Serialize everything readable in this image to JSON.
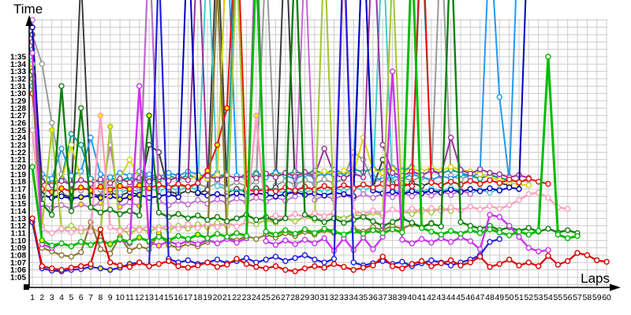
{
  "chart_data": {
    "type": "line",
    "title": "Time",
    "xlabel": "Laps",
    "x_ticks": {
      "from": 1,
      "to": 60,
      "step": 1
    },
    "y_ticks": [
      "1:05",
      "1:06",
      "1:07",
      "1:08",
      "1:09",
      "1:10",
      "1:11",
      "1:12",
      "1:13",
      "1:14",
      "1:15",
      "1:16",
      "1:17",
      "1:18",
      "1:19",
      "1:20",
      "1:21",
      "1:22",
      "1:23",
      "1:24",
      "1:25",
      "1:26",
      "1:27",
      "1:28",
      "1:29",
      "1:30",
      "1:31",
      "1:32",
      "1:33",
      "1:34",
      "1:35"
    ],
    "y_tick_seconds_min": 65,
    "y_tick_seconds_max": 95,
    "y_tick_format": "m:ss",
    "grid": true,
    "grid_color": "#cccccc",
    "axis_color": "#000000",
    "background": "#ffffff",
    "legend_position": "none",
    "marker": "open-circle",
    "marker_fill": "#ffffff",
    "marker_fill_alt": "#ffee00",
    "note": "lap times in seconds; values far above 95s are pit laps clipped by the top of the image",
    "series": [
      {
        "name": "grey",
        "color": "#9a9a9a",
        "width": 2,
        "yellow_marker_laps": [],
        "values": [
          98,
          94.0,
          86.0,
          79.0,
          77.2,
          76.8,
          77.3,
          76.9,
          77.4,
          77.0,
          77.5,
          77.1,
          111,
          77.5,
          77.0,
          77.6,
          77.1,
          77.7,
          77.2,
          77.8,
          77.3,
          77.9,
          77.4,
          78.0,
          109,
          77.5,
          78.1,
          77.6,
          78.2,
          77.7,
          78.3,
          77.8,
          78.4,
          82.0,
          81.0,
          77.9,
          78.5,
          78.0,
          78.6,
          78.1,
          78.7,
          78.2,
          112,
          78.8,
          78.3,
          78.9,
          78.4,
          79.0,
          78.5,
          78.3,
          78.0,
          78.2
        ]
      },
      {
        "name": "black",
        "color": "#3c3c3c",
        "width": 2,
        "yellow_marker_laps": [],
        "values": [
          98,
          76.2,
          75.8,
          76.3,
          75.9,
          106,
          76.4,
          76.0,
          76.5,
          76.1,
          76.6,
          76.2,
          83.0,
          82.0,
          76.7,
          76.3,
          76.8,
          76.4,
          76.9,
          112,
          76.5,
          77.0,
          76.6,
          77.1,
          76.7,
          77.2,
          113,
          76.8,
          77.3,
          76.9,
          77.4,
          77.0,
          77.5,
          77.1,
          77.6,
          77.2,
          81.0,
          77.7,
          77.3,
          77.8,
          77.4,
          77.9,
          77.5,
          78.0,
          77.6,
          78.1,
          77.7,
          78.2,
          77.8,
          77.5
        ]
      },
      {
        "name": "teal",
        "color": "#109988",
        "width": 2,
        "yellow_marker_laps": [],
        "values": [
          96,
          78.2,
          77.8,
          78.3,
          84.5,
          83.0,
          78.4,
          78.0,
          78.5,
          78.1,
          78.6,
          78.2,
          78.7,
          78.3,
          78.8,
          78.4,
          78.9,
          78.5,
          79.0,
          78.6,
          79.1,
          113,
          78.7,
          79.2,
          78.8,
          79.3,
          78.9,
          79.4,
          79.0,
          79.5,
          79.1,
          79.6,
          79.2,
          79.7,
          79.3,
          79.8,
          79.4,
          79.9,
          79.5,
          80.0,
          112,
          79.6,
          79.1,
          79.6,
          79.2,
          78.8,
          78.4,
          78.9,
          78.5,
          78.2
        ]
      },
      {
        "name": "skyblue",
        "color": "#2299ee",
        "width": 2,
        "yellow_marker_laps": [],
        "values": [
          91,
          79.0,
          78.4,
          82.5,
          78.8,
          79.4,
          84.0,
          79.0,
          78.6,
          79.2,
          78.8,
          79.4,
          79.0,
          78.6,
          79.2,
          78.8,
          79.4,
          79.0,
          78.6,
          79.2,
          112,
          78.8,
          78.4,
          79.0,
          78.6,
          79.2,
          78.8,
          78.4,
          79.0,
          78.6,
          79.2,
          78.8,
          79.4,
          79.0,
          113,
          78.6,
          78.2,
          78.8,
          78.4,
          79.0,
          78.6,
          78.2,
          78.8,
          78.4,
          79.0,
          78.6,
          79.2,
          112,
          89.5,
          78.0,
          115
        ]
      },
      {
        "name": "cyan",
        "color": "#44cccc",
        "width": 2,
        "yellow_marker_laps": [
          5,
          7
        ],
        "values": [
          94.5,
          77.0,
          76.6,
          77.1,
          76.7,
          77.2,
          76.8,
          77.3,
          76.9,
          76.5,
          77.0,
          76.6,
          77.1,
          76.7,
          77.2,
          76.8,
          77.3,
          76.9,
          111,
          77.4,
          77.0,
          76.6,
          77.1,
          76.7,
          77.2,
          76.8,
          76.4,
          76.9,
          76.5,
          77.0,
          76.6,
          77.1,
          76.7,
          77.2,
          76.8,
          77.3,
          112,
          76.9,
          76.5,
          77.0,
          76.6,
          77.1,
          76.7,
          77.2,
          76.8,
          76.4,
          76.9,
          76.5,
          77.0
        ]
      },
      {
        "name": "yellow",
        "color": "#ddd400",
        "width": 2,
        "yellow_marker_laps": [],
        "values": [
          93.5,
          78.0,
          77.6,
          78.1,
          83.0,
          78.2,
          77.8,
          78.3,
          77.9,
          78.4,
          81.0,
          78.5,
          78.1,
          78.6,
          78.2,
          78.7,
          78.3,
          78.8,
          78.4,
          78.9,
          112,
          114,
          79.0,
          78.6,
          79.1,
          78.7,
          79.2,
          78.8,
          79.3,
          78.9,
          79.4,
          79.0,
          79.5,
          79.1,
          84.0,
          79.6,
          79.2,
          79.7,
          79.3,
          79.8,
          79.4,
          79.9,
          79.5,
          80.0,
          79.6,
          79.4,
          79.0,
          78.6,
          78.2,
          77.9,
          77.6,
          77.5
        ]
      },
      {
        "name": "purple",
        "color": "#993399",
        "width": 2,
        "yellow_marker_laps": [],
        "values": [
          97,
          78.0,
          77.5,
          78.1,
          77.6,
          78.2,
          77.7,
          78.3,
          77.8,
          78.4,
          77.9,
          78.5,
          78.0,
          78.6,
          78.1,
          78.7,
          78.2,
          112,
          78.8,
          78.3,
          78.9,
          78.4,
          79.0,
          78.5,
          79.1,
          78.6,
          79.2,
          78.7,
          79.3,
          78.8,
          82.5,
          79.0,
          78.5,
          79.1,
          78.6,
          114,
          83.0,
          79.2,
          78.8,
          79.4,
          78.9,
          79.5,
          79.0,
          84.0,
          79.6,
          79.1,
          79.7,
          79.2,
          79.0,
          78.6,
          78.9,
          78.5
        ]
      },
      {
        "name": "orchid",
        "color": "#c46ad2",
        "width": 2,
        "yellow_marker_laps": [
          6,
          8,
          10,
          12
        ],
        "values": [
          100,
          75.0,
          74.4,
          74.8,
          74.3,
          74.9,
          74.5,
          75.1,
          83.0,
          74.6,
          75.2,
          74.7,
          111,
          75.3,
          74.8,
          75.4,
          74.9,
          75.5,
          75.0,
          75.6,
          75.1,
          75.7,
          75.2,
          75.8,
          75.3,
          75.9,
          75.4,
          76.0,
          109,
          75.5,
          76.1,
          75.6,
          76.2,
          75.7,
          76.3,
          75.8,
          76.4,
          75.9,
          76.5,
          76.0,
          76.6,
          76.1,
          76.7,
          76.2,
          76.8,
          76.3
        ]
      },
      {
        "name": "navy",
        "color": "#0000bb",
        "width": 2,
        "yellow_marker_laps": [
          5,
          6,
          7,
          8,
          9,
          10,
          11,
          12
        ],
        "values": [
          99,
          76.2,
          75.8,
          76.0,
          75.7,
          75.9,
          76.1,
          75.8,
          76.0,
          75.6,
          75.9,
          76.2,
          75.8,
          76.0,
          76.3,
          75.9,
          113,
          76.5,
          76.1,
          76.3,
          76.0,
          76.4,
          76.1,
          76.5,
          76.2,
          76.0,
          76.3,
          76.6,
          76.2,
          76.4,
          76.1,
          76.5,
          76.3,
          76.0,
          114,
          76.8,
          76.4,
          76.6,
          76.3,
          76.7,
          76.4,
          76.8,
          76.5,
          76.9,
          76.6,
          77.0,
          76.7,
          77.1,
          76.8,
          77.2,
          77.0,
          115
        ]
      },
      {
        "name": "red-mid",
        "color": "#ee1111",
        "width": 2,
        "yellow_marker_laps": [
          3,
          4,
          5,
          6,
          7,
          8,
          9,
          10,
          11,
          12,
          13,
          19,
          20,
          21
        ],
        "values": [
          90,
          77.0,
          76.6,
          77.1,
          76.7,
          77.2,
          76.8,
          77.3,
          76.9,
          77.4,
          77.0,
          77.5,
          77.1,
          77.6,
          77.2,
          77.7,
          77.3,
          77.8,
          79.5,
          83.0,
          88.0,
          115,
          77.0,
          76.6,
          77.1,
          76.7,
          77.2,
          76.8,
          77.3,
          76.9,
          77.4,
          77.0,
          77.5,
          77.1,
          77.6,
          77.2,
          77.7,
          77.3,
          77.8,
          77.4,
          116,
          77.9,
          77.5,
          78.0,
          77.6,
          78.1,
          77.7,
          78.2,
          77.8,
          78.3,
          77.9,
          78.4,
          78.0,
          77.7
        ]
      },
      {
        "name": "yellowgreen",
        "color": "#a6c83c",
        "width": 2.2,
        "yellow_marker_laps": [
          3,
          9
        ],
        "values": [
          94,
          72.0,
          85.0,
          71.5,
          72.0,
          71.2,
          71.8,
          71.0,
          85.5,
          71.5,
          71.0,
          71.6,
          71.2,
          71.8,
          71.4,
          72.0,
          71.6,
          72.2,
          71.8,
          72.4,
          72.0,
          108,
          72.6,
          72.2,
          72.8,
          72.4,
          73.0,
          72.6,
          73.2,
          72.8,
          110,
          73.4,
          73.0,
          73.6,
          73.2,
          73.8,
          73.4,
          107,
          74.0,
          73.6,
          74.2,
          73.8,
          74.4,
          74.0
        ]
      },
      {
        "name": "olive",
        "color": "#8a7a30",
        "width": 2.2,
        "yellow_marker_laps": [
          10,
          14
        ],
        "values": [
          92,
          69.0,
          68.5,
          68.0,
          67.8,
          68.4,
          72.5,
          68.8,
          68.2,
          70.5,
          68.6,
          69.2,
          68.8,
          71.0,
          69.4,
          69.0,
          69.6,
          69.2,
          69.8,
          105,
          70.4,
          70.0,
          70.6,
          70.2,
          70.8,
          70.4,
          71.0,
          70.6,
          71.2,
          70.8,
          71.4,
          71.0,
          108,
          71.6,
          71.2,
          71.8,
          71.4,
          72.0,
          71.6,
          72.2,
          71.8,
          72.4
        ]
      },
      {
        "name": "pink",
        "color": "#ff9ec0",
        "width": 2.4,
        "yellow_marker_laps": [
          8,
          24
        ],
        "values": [
          85,
          71.5,
          71.0,
          71.6,
          71.1,
          71.7,
          71.2,
          87.0,
          71.8,
          71.3,
          71.9,
          71.4,
          72.0,
          71.5,
          72.1,
          71.6,
          72.2,
          71.7,
          72.3,
          71.8,
          72.4,
          71.9,
          72.5,
          87.0,
          73.0,
          73.4,
          73.1,
          73.6,
          73.2,
          73.7,
          73.3,
          73.8,
          108,
          74.0,
          73.6,
          74.1,
          73.7,
          74.2,
          73.8,
          74.3,
          73.9,
          74.4,
          74.0,
          74.5,
          74.1,
          74.6,
          74.2,
          74.7,
          74.3,
          74.8,
          75.5,
          76.3,
          76.5,
          75.8,
          74.5,
          74.3
        ]
      },
      {
        "name": "forest",
        "color": "#118011",
        "width": 2.4,
        "yellow_marker_laps": [
          13
        ],
        "values": [
          93,
          75.0,
          73.5,
          91.0,
          74.0,
          88.0,
          74.5,
          73.8,
          74.2,
          73.6,
          74.0,
          73.4,
          87.0,
          73.8,
          73.2,
          73.6,
          73.0,
          73.4,
          72.8,
          73.2,
          72.6,
          73.0,
          73.5,
          72.8,
          73.2,
          72.6,
          73.0,
          110,
          73.5,
          73.0,
          72.5,
          73.0,
          72.4,
          72.8,
          73.2,
          72.6,
          72.0,
          72.5,
          73.0,
          72.4,
          71.8,
          72.3,
          71.9,
          112,
          72.5,
          72.0,
          71.6,
          72.0,
          71.4,
          71.8,
          71.3,
          71.7,
          71.2,
          71.6,
          71.1,
          71.4,
          71.0
        ]
      },
      {
        "name": "magenta",
        "color": "#cc33ee",
        "width": 2.4,
        "yellow_marker_laps": [
          6,
          11,
          14,
          17
        ],
        "values": [
          95.5,
          69.5,
          69.0,
          69.6,
          69.2,
          69.8,
          69.4,
          70.0,
          69.5,
          70.1,
          69.6,
          91.0,
          69.8,
          69.3,
          69.9,
          69.4,
          70.0,
          69.5,
          70.1,
          69.6,
          70.2,
          69.7,
          70.3,
          113,
          69.9,
          69.4,
          70.0,
          69.5,
          70.1,
          69.6,
          70.3,
          68.6,
          70.3,
          68.7,
          70.4,
          68.8,
          70.5,
          93.0,
          70.1,
          69.6,
          70.2,
          69.7,
          70.3,
          69.8,
          70.4,
          69.9,
          68.8,
          73.5,
          73.2,
          72.0,
          70.5,
          69.0,
          68.5,
          68.7
        ]
      },
      {
        "name": "green",
        "color": "#00bb00",
        "width": 3,
        "yellow_marker_laps": [
          2,
          9,
          12,
          15,
          18
        ],
        "values": [
          80,
          70.0,
          69.3,
          69.6,
          69.2,
          69.8,
          69.4,
          70.0,
          69.5,
          70.2,
          69.8,
          70.4,
          69.9,
          70.5,
          70.0,
          70.6,
          70.2,
          70.8,
          70.3,
          70.9,
          70.5,
          71.0,
          70.6,
          108,
          71.2,
          70.8,
          71.4,
          70.9,
          71.5,
          71.0,
          71.6,
          71.2,
          70.8,
          71.3,
          70.9,
          71.4,
          71.0,
          71.5,
          71.1,
          110,
          71.7,
          71.2,
          70.8,
          71.3,
          70.9,
          71.4,
          71.0,
          71.5,
          71.1,
          70.7,
          71.2,
          70.8,
          71.3,
          95.0,
          70.8,
          70.3,
          70.6
        ]
      },
      {
        "name": "blue",
        "color": "#2020dd",
        "width": 2.2,
        "yellow_marker_laps": [
          7,
          8,
          9,
          10,
          11
        ],
        "values": [
          72.5,
          66.2,
          65.9,
          65.8,
          66.0,
          66.1,
          66.4,
          66.2,
          66.0,
          66.3,
          66.8,
          67.0,
          66.5,
          108,
          67.5,
          67.0,
          67.3,
          66.8,
          67.0,
          67.4,
          66.9,
          67.2,
          67.6,
          67.0,
          67.4,
          67.8,
          67.2,
          67.6,
          68.0,
          67.4,
          67.0,
          67.5,
          112,
          67.0,
          66.6,
          66.9,
          67.2,
          66.8,
          67.1,
          66.5,
          66.9,
          67.3,
          67.0,
          66.6,
          67.0,
          67.4,
          68.0,
          69.8,
          70.2
        ]
      },
      {
        "name": "red",
        "color": "#dd0000",
        "width": 2.2,
        "yellow_marker_laps": [],
        "values": [
          73,
          66.5,
          66.2,
          66.0,
          66.3,
          66.5,
          66.8,
          71.5,
          67.0,
          66.6,
          66.4,
          67.0,
          66.5,
          66.8,
          67.2,
          66.5,
          66.3,
          66.6,
          67.0,
          66.4,
          66.7,
          67.5,
          66.8,
          66.4,
          66.2,
          66.5,
          66.0,
          65.8,
          66.2,
          66.5,
          66.3,
          66.8,
          66.4,
          66.0,
          66.3,
          66.6,
          67.8,
          66.5,
          66.2,
          66.8,
          67.2,
          66.5,
          66.9,
          67.3,
          66.6,
          67.0,
          67.8,
          66.4,
          66.8,
          67.4,
          66.6,
          67.0,
          66.5,
          67.9,
          66.7,
          67.2,
          68.3,
          68.0,
          67.3,
          67.1
        ]
      }
    ]
  }
}
